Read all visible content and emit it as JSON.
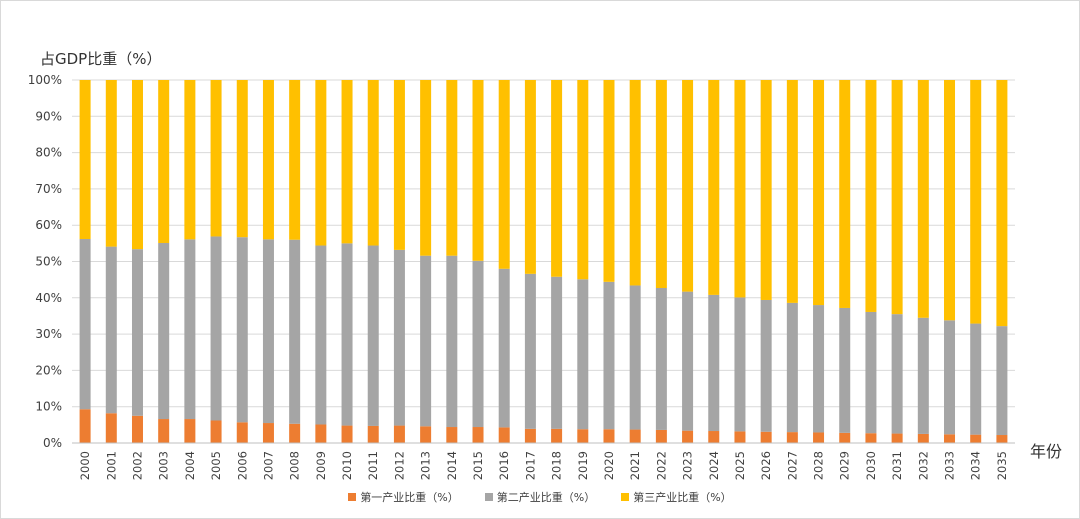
{
  "chart_data": {
    "type": "bar",
    "stacked": true,
    "ylabel": "占GDP比重（%）",
    "xlabel": "年份",
    "ylim": [
      0,
      100
    ],
    "yticks": [
      "0%",
      "10%",
      "20%",
      "30%",
      "40%",
      "50%",
      "60%",
      "70%",
      "80%",
      "90%",
      "100%"
    ],
    "grid": true,
    "legend_position": "bottom",
    "categories": [
      "2000",
      "2001",
      "2002",
      "2003",
      "2004",
      "2005",
      "2006",
      "2007",
      "2008",
      "2009",
      "2010",
      "2011",
      "2012",
      "2013",
      "2014",
      "2015",
      "2016",
      "2017",
      "2018",
      "2019",
      "2020",
      "2021",
      "2022",
      "2023",
      "2024",
      "2025",
      "2026",
      "2027",
      "2028",
      "2029",
      "2030",
      "2031",
      "2032",
      "2033",
      "2034",
      "2035"
    ],
    "series": [
      {
        "name": "第一产业比重（%）",
        "color": "#ed7d31",
        "values": [
          9.3,
          8.2,
          7.5,
          6.6,
          6.6,
          6.2,
          5.7,
          5.5,
          5.3,
          5.1,
          4.8,
          4.7,
          4.8,
          4.6,
          4.4,
          4.4,
          4.3,
          3.9,
          3.9,
          3.8,
          3.8,
          3.7,
          3.6,
          3.4,
          3.3,
          3.2,
          3.1,
          3.0,
          2.9,
          2.8,
          2.7,
          2.6,
          2.5,
          2.4,
          2.3,
          2.2
        ]
      },
      {
        "name": "第二产业比重（%）",
        "color": "#a5a5a5",
        "values": [
          46.9,
          45.9,
          45.9,
          48.5,
          49.5,
          50.7,
          51.0,
          50.6,
          50.7,
          49.3,
          50.2,
          49.7,
          48.4,
          47.0,
          47.2,
          45.8,
          43.7,
          42.7,
          41.9,
          41.3,
          40.6,
          39.7,
          39.1,
          38.3,
          37.5,
          36.9,
          36.3,
          35.6,
          35.1,
          34.4,
          33.4,
          32.9,
          32.0,
          31.4,
          30.6,
          30.0
        ]
      },
      {
        "name": "第三产业比重（%）",
        "color": "#ffc000",
        "values": [
          43.8,
          45.9,
          46.6,
          44.9,
          43.9,
          43.1,
          43.3,
          43.9,
          44.0,
          45.6,
          45.0,
          45.6,
          46.8,
          48.4,
          48.4,
          49.8,
          52.0,
          53.4,
          54.2,
          54.9,
          55.6,
          56.6,
          57.3,
          58.3,
          59.2,
          59.9,
          60.6,
          61.4,
          62.0,
          62.8,
          63.9,
          64.5,
          65.5,
          66.2,
          67.1,
          67.8
        ]
      }
    ]
  }
}
